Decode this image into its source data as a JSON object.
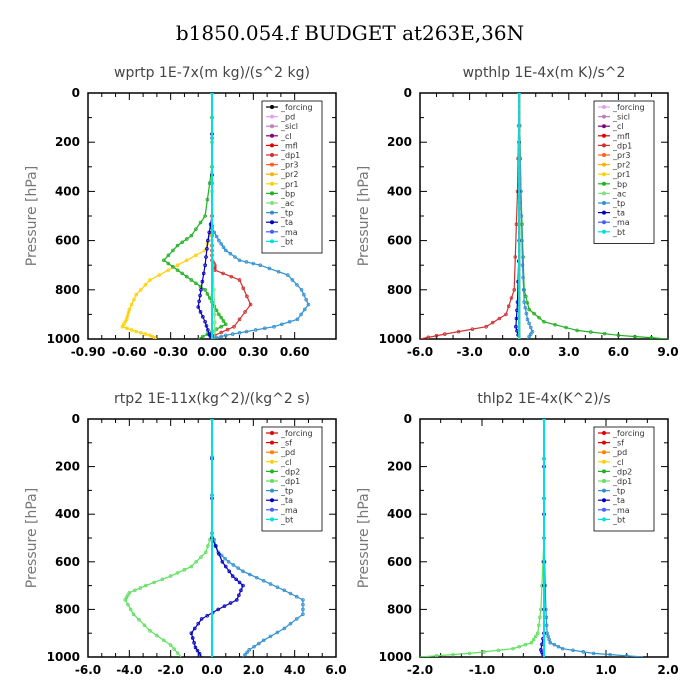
{
  "title": "b1850.054.f  BUDGET at263E,36N",
  "chart_data": [
    {
      "type": "line",
      "title": "wprtp   1E-7x(m kg)/(s^2 kg)",
      "ylabel": "Pressure [hPa]",
      "xlim": [
        -0.9,
        0.9
      ],
      "xticks": [
        "-0.90",
        "-0.60",
        "-0.30",
        "0.00",
        "0.30",
        "0.60"
      ],
      "xtick_values": [
        -0.9,
        -0.6,
        -0.3,
        0.0,
        0.3,
        0.6
      ],
      "ylim": [
        0,
        1000
      ],
      "yticks": [
        "0",
        "200",
        "400",
        "600",
        "800",
        "1000"
      ],
      "ytick_values": [
        0,
        200,
        400,
        600,
        800,
        1000
      ],
      "legend_position": "top-right",
      "series": [
        {
          "name": "_forcing",
          "color": "#000000",
          "marker": "o",
          "x": [
            0,
            0
          ],
          "y": [
            0,
            1000
          ]
        },
        {
          "name": "_pd",
          "color": "#e8a0e8",
          "marker": "o",
          "x": [
            0,
            0
          ],
          "y": [
            0,
            1000
          ]
        },
        {
          "name": "_sicl",
          "color": "#c080c0",
          "marker": "o",
          "x": [
            0,
            0
          ],
          "y": [
            0,
            1000
          ]
        },
        {
          "name": "_cl",
          "color": "#800080",
          "marker": "o",
          "x": [
            0,
            0
          ],
          "y": [
            0,
            1000
          ]
        },
        {
          "name": "_mfl",
          "color": "#e00000",
          "marker": "s",
          "x": [
            0,
            0
          ],
          "y": [
            0,
            1000
          ]
        },
        {
          "name": "_dp1",
          "color": "#d03030",
          "marker": "o",
          "x": [
            0,
            0,
            0,
            0,
            0.02,
            0.02,
            0.2,
            0.28,
            0.16,
            0.02,
            0.0
          ],
          "y": [
            0,
            500,
            620,
            680,
            700,
            720,
            760,
            860,
            950,
            985,
            1000
          ]
        },
        {
          "name": "_pr3",
          "color": "#ff6020",
          "marker": "x",
          "x": [
            0,
            0,
            0
          ],
          "y": [
            0,
            500,
            1000
          ]
        },
        {
          "name": "_pr2",
          "color": "#ffb000",
          "marker": "v",
          "x": [
            0,
            0
          ],
          "y": [
            0,
            1000
          ]
        },
        {
          "name": "_pr1",
          "color": "#ffd000",
          "marker": "v",
          "x": [
            0,
            0,
            -0.05,
            -0.25,
            -0.45,
            -0.55,
            -0.6,
            -0.62,
            -0.65,
            -0.55,
            -0.45,
            -0.4
          ],
          "y": [
            0,
            550,
            640,
            700,
            760,
            820,
            880,
            920,
            950,
            970,
            985,
            1000
          ]
        },
        {
          "name": "_bp",
          "color": "#20b020",
          "marker": "x",
          "x": [
            0,
            0,
            -0.05,
            -0.15,
            -0.25,
            -0.35,
            -0.25,
            -0.15,
            -0.05,
            0.0,
            0.05,
            0.1,
            0.0,
            -0.1
          ],
          "y": [
            0,
            300,
            500,
            580,
            620,
            680,
            720,
            760,
            800,
            850,
            900,
            940,
            970,
            1000
          ]
        },
        {
          "name": "_ac",
          "color": "#80e080",
          "marker": "o",
          "x": [
            0,
            0,
            0.02,
            0.02
          ],
          "y": [
            0,
            600,
            900,
            1000
          ]
        },
        {
          "name": "_tp",
          "color": "#3090d0",
          "marker": "*",
          "x": [
            0,
            0,
            0.05,
            0.1,
            0.2,
            0.35,
            0.55,
            0.65,
            0.7,
            0.62,
            0.45,
            0.25,
            0.1,
            0.0
          ],
          "y": [
            0,
            550,
            600,
            640,
            680,
            700,
            740,
            800,
            860,
            920,
            950,
            970,
            985,
            1000
          ]
        },
        {
          "name": "_ta",
          "color": "#0000c0",
          "marker": "+",
          "x": [
            0,
            0,
            -0.03,
            -0.05,
            -0.08,
            -0.1,
            -0.05,
            -0.02,
            0.0
          ],
          "y": [
            0,
            500,
            600,
            700,
            800,
            870,
            930,
            980,
            1000
          ]
        },
        {
          "name": "_ma",
          "color": "#4060ff",
          "marker": "-",
          "x": [
            0,
            0
          ],
          "y": [
            0,
            1000
          ]
        },
        {
          "name": "_bt",
          "color": "#00e0e0",
          "marker": "d",
          "x": [
            0,
            0
          ],
          "y": [
            0,
            1000
          ]
        }
      ]
    },
    {
      "type": "line",
      "title": "wpthlp   1E-4x(m K)/s^2",
      "ylabel": "Pressure [hPa]",
      "xlim": [
        -6.0,
        9.0
      ],
      "xticks": [
        "-6.0",
        "-3.0",
        "0.0",
        "3.0",
        "6.0",
        "9.0"
      ],
      "xtick_values": [
        -6.0,
        -3.0,
        0.0,
        3.0,
        6.0,
        9.0
      ],
      "ylim": [
        0,
        1000
      ],
      "yticks": [
        "0",
        "200",
        "400",
        "600",
        "800",
        "1000"
      ],
      "ytick_values": [
        0,
        200,
        400,
        600,
        800,
        1000
      ],
      "legend_position": "top-right",
      "series": [
        {
          "name": "_forcing",
          "color": "#e8a0e8",
          "marker": "o",
          "x": [
            0,
            0
          ],
          "y": [
            0,
            1000
          ]
        },
        {
          "name": "_sicl",
          "color": "#c080c0",
          "marker": "o",
          "x": [
            0,
            0
          ],
          "y": [
            0,
            1000
          ]
        },
        {
          "name": "_cl",
          "color": "#800080",
          "marker": "o",
          "x": [
            0,
            0
          ],
          "y": [
            0,
            1000
          ]
        },
        {
          "name": "_mfl",
          "color": "#e00000",
          "marker": "s",
          "x": [
            0,
            0
          ],
          "y": [
            0,
            1000
          ]
        },
        {
          "name": "_dp1",
          "color": "#d03030",
          "marker": "o",
          "x": [
            0,
            -0.1,
            -0.3,
            -0.8,
            -2.0,
            -4.5,
            -6.0
          ],
          "y": [
            0,
            400,
            800,
            900,
            950,
            980,
            1000
          ]
        },
        {
          "name": "_pr3",
          "color": "#ff6020",
          "marker": "x",
          "x": [
            0,
            0
          ],
          "y": [
            0,
            1000
          ]
        },
        {
          "name": "_pr2",
          "color": "#ffb000",
          "marker": "v",
          "x": [
            0,
            0
          ],
          "y": [
            0,
            1000
          ]
        },
        {
          "name": "_pr1",
          "color": "#ffd000",
          "marker": "v",
          "x": [
            0,
            0
          ],
          "y": [
            0,
            1000
          ]
        },
        {
          "name": "_bp",
          "color": "#20b020",
          "marker": "x",
          "x": [
            0,
            0.1,
            0.3,
            0.6,
            1.5,
            3.5,
            6.0,
            9.0
          ],
          "y": [
            0,
            400,
            800,
            880,
            930,
            965,
            985,
            1000
          ]
        },
        {
          "name": "_ac",
          "color": "#80e080",
          "marker": "o",
          "x": [
            0,
            0
          ],
          "y": [
            0,
            1000
          ]
        },
        {
          "name": "_tp",
          "color": "#3090d0",
          "marker": "*",
          "x": [
            0,
            0.1,
            0.2,
            0.3,
            0.5,
            0.8,
            0.5
          ],
          "y": [
            0,
            400,
            700,
            850,
            920,
            970,
            1000
          ]
        },
        {
          "name": "_ta",
          "color": "#0000c0",
          "marker": "+",
          "x": [
            0,
            0,
            -0.1,
            -0.2,
            0
          ],
          "y": [
            0,
            600,
            850,
            950,
            1000
          ]
        },
        {
          "name": "_ma",
          "color": "#4060ff",
          "marker": "-",
          "x": [
            0,
            0
          ],
          "y": [
            0,
            1000
          ]
        },
        {
          "name": "_bt",
          "color": "#00e0e0",
          "marker": "d",
          "x": [
            0,
            0
          ],
          "y": [
            0,
            1000
          ]
        }
      ]
    },
    {
      "type": "line",
      "title": "rtp2   1E-11x(kg^2)/(kg^2 s)",
      "ylabel": "Pressure [hPa]",
      "xlim": [
        -6.0,
        6.0
      ],
      "xticks": [
        "-6.0",
        "-4.0",
        "-2.0",
        "0.0",
        "2.0",
        "4.0",
        "6.0"
      ],
      "xtick_values": [
        -6.0,
        -4.0,
        -2.0,
        0.0,
        2.0,
        4.0,
        6.0
      ],
      "ylim": [
        0,
        1000
      ],
      "yticks": [
        "0",
        "200",
        "400",
        "600",
        "800",
        "1000"
      ],
      "ytick_values": [
        0,
        200,
        400,
        600,
        800,
        1000
      ],
      "legend_position": "top-right",
      "series": [
        {
          "name": "_forcing",
          "color": "#e00000",
          "marker": "o",
          "x": [
            0,
            0
          ],
          "y": [
            0,
            1000
          ]
        },
        {
          "name": "_sf",
          "color": "#e00000",
          "marker": "v",
          "x": [
            0,
            0
          ],
          "y": [
            0,
            1000
          ]
        },
        {
          "name": "_pd",
          "color": "#ff8000",
          "marker": "o",
          "x": [
            0,
            0
          ],
          "y": [
            0,
            1000
          ]
        },
        {
          "name": "_cl",
          "color": "#ffd000",
          "marker": "o",
          "x": [
            0,
            0
          ],
          "y": [
            0,
            1000
          ]
        },
        {
          "name": "_dp2",
          "color": "#20b020",
          "marker": "o",
          "x": [
            0,
            0
          ],
          "y": [
            0,
            1000
          ]
        },
        {
          "name": "_dp1",
          "color": "#60e060",
          "marker": "o",
          "x": [
            0,
            0,
            -0.3,
            -1.0,
            -2.0,
            -3.2,
            -4.0,
            -4.2,
            -3.8,
            -3.0,
            -2.0,
            -1.5
          ],
          "y": [
            0,
            480,
            560,
            620,
            660,
            700,
            730,
            760,
            820,
            890,
            950,
            1000
          ]
        },
        {
          "name": "_tp",
          "color": "#3090d0",
          "marker": "*",
          "x": [
            0,
            0,
            0.3,
            0.8,
            1.5,
            2.5,
            3.5,
            4.4,
            4.4,
            3.5,
            2.5,
            1.8,
            1.5
          ],
          "y": [
            0,
            480,
            560,
            600,
            640,
            680,
            720,
            760,
            820,
            880,
            930,
            970,
            1000
          ]
        },
        {
          "name": "_ta",
          "color": "#0000c0",
          "marker": "+",
          "x": [
            0,
            0,
            0.5,
            1.0,
            1.5,
            1.2,
            0.3,
            -0.5,
            -1.0,
            -0.8,
            -0.5
          ],
          "y": [
            0,
            500,
            600,
            660,
            700,
            760,
            800,
            840,
            900,
            960,
            1000
          ]
        },
        {
          "name": "_ma",
          "color": "#4060ff",
          "marker": "-",
          "x": [
            0,
            0
          ],
          "y": [
            0,
            1000
          ]
        },
        {
          "name": "_bt",
          "color": "#00e0e0",
          "marker": "d",
          "x": [
            0,
            0
          ],
          "y": [
            0,
            1000
          ]
        }
      ]
    },
    {
      "type": "line",
      "title": "thlp2   1E-4x(K^2)/s",
      "ylabel": "Pressure [hPa]",
      "xlim": [
        -2.0,
        2.0
      ],
      "xticks": [
        "-2.0",
        "-1.0",
        "0.0",
        "1.0",
        "2.0"
      ],
      "xtick_values": [
        -2.0,
        -1.0,
        0.0,
        1.0,
        2.0
      ],
      "ylim": [
        0,
        1000
      ],
      "yticks": [
        "0",
        "200",
        "400",
        "600",
        "800",
        "1000"
      ],
      "ytick_values": [
        0,
        200,
        400,
        600,
        800,
        1000
      ],
      "legend_position": "top-right",
      "series": [
        {
          "name": "_forcing",
          "color": "#e00000",
          "marker": "o",
          "x": [
            0,
            0
          ],
          "y": [
            0,
            1000
          ]
        },
        {
          "name": "_sf",
          "color": "#e00000",
          "marker": "v",
          "x": [
            0,
            0
          ],
          "y": [
            0,
            1000
          ]
        },
        {
          "name": "_pd",
          "color": "#ff8000",
          "marker": "o",
          "x": [
            0,
            0
          ],
          "y": [
            0,
            1000
          ]
        },
        {
          "name": "_cl",
          "color": "#ffd000",
          "marker": "o",
          "x": [
            0,
            0
          ],
          "y": [
            0,
            1000
          ]
        },
        {
          "name": "_dp2",
          "color": "#20b020",
          "marker": "o",
          "x": [
            0,
            0
          ],
          "y": [
            0,
            1000
          ]
        },
        {
          "name": "_dp1",
          "color": "#60e060",
          "marker": "o",
          "x": [
            0,
            0,
            -0.05,
            -0.1,
            -0.2,
            -0.5,
            -1.2,
            -2.0
          ],
          "y": [
            0,
            500,
            800,
            900,
            940,
            965,
            985,
            1000
          ]
        },
        {
          "name": "_tp",
          "color": "#3090d0",
          "marker": "*",
          "x": [
            0,
            0,
            0.03,
            0.05,
            0.1,
            0.3,
            0.8,
            1.6
          ],
          "y": [
            0,
            500,
            800,
            900,
            940,
            965,
            985,
            1000
          ]
        },
        {
          "name": "_ta",
          "color": "#0000c0",
          "marker": "+",
          "x": [
            0,
            0,
            0,
            -0.05,
            0
          ],
          "y": [
            0,
            600,
            900,
            970,
            1000
          ]
        },
        {
          "name": "_ma",
          "color": "#4060ff",
          "marker": "-",
          "x": [
            0,
            0
          ],
          "y": [
            0,
            1000
          ]
        },
        {
          "name": "_bt",
          "color": "#00e0e0",
          "marker": "d",
          "x": [
            0,
            0
          ],
          "y": [
            0,
            1000
          ]
        }
      ]
    }
  ]
}
